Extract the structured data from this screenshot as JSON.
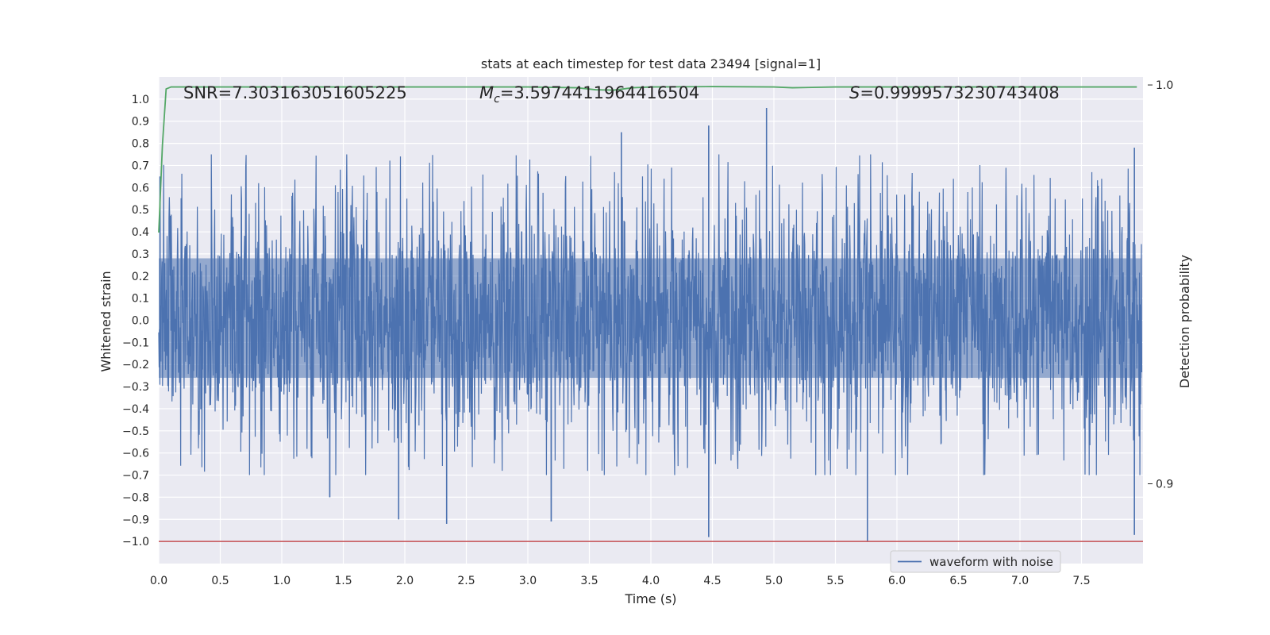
{
  "chart_data": {
    "type": "line",
    "title": "stats at each timestep for test data 23494 [signal=1]",
    "xlabel": "Time (s)",
    "ylabel": "Whitened strain",
    "ylabel_right": "Detection probability",
    "xlim": [
      0.0,
      8.0
    ],
    "ylim": [
      -1.1,
      1.1
    ],
    "ylim_right": [
      0.88,
      1.002
    ],
    "xticks": [
      "0.0",
      "0.5",
      "1.0",
      "1.5",
      "2.0",
      "2.5",
      "3.0",
      "3.5",
      "4.0",
      "4.5",
      "5.0",
      "5.5",
      "6.0",
      "6.5",
      "7.0",
      "7.5"
    ],
    "yticks": [
      "1.0",
      "0.9",
      "0.8",
      "0.7",
      "0.6",
      "0.5",
      "0.4",
      "0.3",
      "0.2",
      "0.1",
      "0.0",
      "−0.1",
      "−0.2",
      "−0.3",
      "−0.4",
      "−0.5",
      "−0.6",
      "−0.7",
      "−0.8",
      "−0.9",
      "−1.0"
    ],
    "yticks_right": [
      "1.0",
      "0.9"
    ],
    "grid": true,
    "legend": {
      "placement": "lower-right",
      "entries": [
        "waveform with noise"
      ]
    },
    "annotations": {
      "snr": "SNR=7.303163051605225",
      "mc_symbol": "M",
      "mc_sub": "c",
      "mc_value": "=3.5974411964416504",
      "s_symbol": "S",
      "s_value": "=0.9999573230743408"
    },
    "series": [
      {
        "name": "waveform with noise",
        "color": "#4c72b0",
        "kind": "noise",
        "x_range": [
          0.0,
          7.99
        ],
        "envelope": 0.42,
        "typical_max": 0.75,
        "typical_min": -0.6,
        "peaks": [
          {
            "x": 0.01,
            "y": 0.65
          },
          {
            "x": 1.39,
            "y": -0.8
          },
          {
            "x": 1.95,
            "y": -0.9
          },
          {
            "x": 2.34,
            "y": -0.92
          },
          {
            "x": 3.19,
            "y": -0.91
          },
          {
            "x": 3.76,
            "y": 0.85
          },
          {
            "x": 4.47,
            "y": 0.88
          },
          {
            "x": 4.47,
            "y": -0.98
          },
          {
            "x": 4.94,
            "y": 0.96
          },
          {
            "x": 5.76,
            "y": -1.0
          },
          {
            "x": 7.93,
            "y": -0.97
          },
          {
            "x": 7.93,
            "y": 0.78
          }
        ]
      },
      {
        "name": "",
        "color": "#55a868",
        "axis": "right",
        "x": [
          0.0,
          0.03,
          0.06,
          0.1,
          0.5,
          1.0,
          2.0,
          3.0,
          3.4,
          3.55,
          3.7,
          3.85,
          4.0,
          4.5,
          5.0,
          5.15,
          5.5,
          6.0,
          7.0,
          7.95
        ],
        "y": [
          0.963,
          0.985,
          0.999,
          0.9995,
          0.9995,
          0.9995,
          0.9995,
          0.9995,
          0.9993,
          0.9988,
          0.9987,
          0.9993,
          0.9995,
          0.9996,
          0.9995,
          0.9993,
          0.9995,
          0.9995,
          0.9995,
          0.9995
        ]
      },
      {
        "name": "",
        "color": "#c44e52",
        "kind": "hline",
        "y": -1.0
      }
    ]
  }
}
